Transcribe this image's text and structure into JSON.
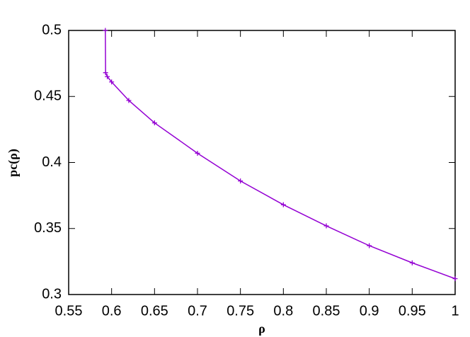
{
  "chart_data": {
    "type": "line",
    "x_label": "ρ",
    "y_label": "pc(ρ)",
    "x": [
      0.5927,
      0.593,
      0.595,
      0.6,
      0.62,
      0.65,
      0.7,
      0.75,
      0.8,
      0.85,
      0.9,
      0.95,
      1.0
    ],
    "series": [
      {
        "color": "#9400d3",
        "values": [
          0.5,
          0.468,
          0.465,
          0.461,
          0.447,
          0.43,
          0.407,
          0.386,
          0.368,
          0.352,
          0.337,
          0.324,
          0.312
        ]
      }
    ],
    "xlim": [
      0.55,
      1
    ],
    "xticks": [
      0.55,
      0.6,
      0.65,
      0.7,
      0.75,
      0.8,
      0.85,
      0.9,
      0.95,
      1
    ],
    "ylim": [
      0.3,
      0.5
    ],
    "yticks": [
      0.3,
      0.35,
      0.4,
      0.45,
      0.5
    ]
  }
}
